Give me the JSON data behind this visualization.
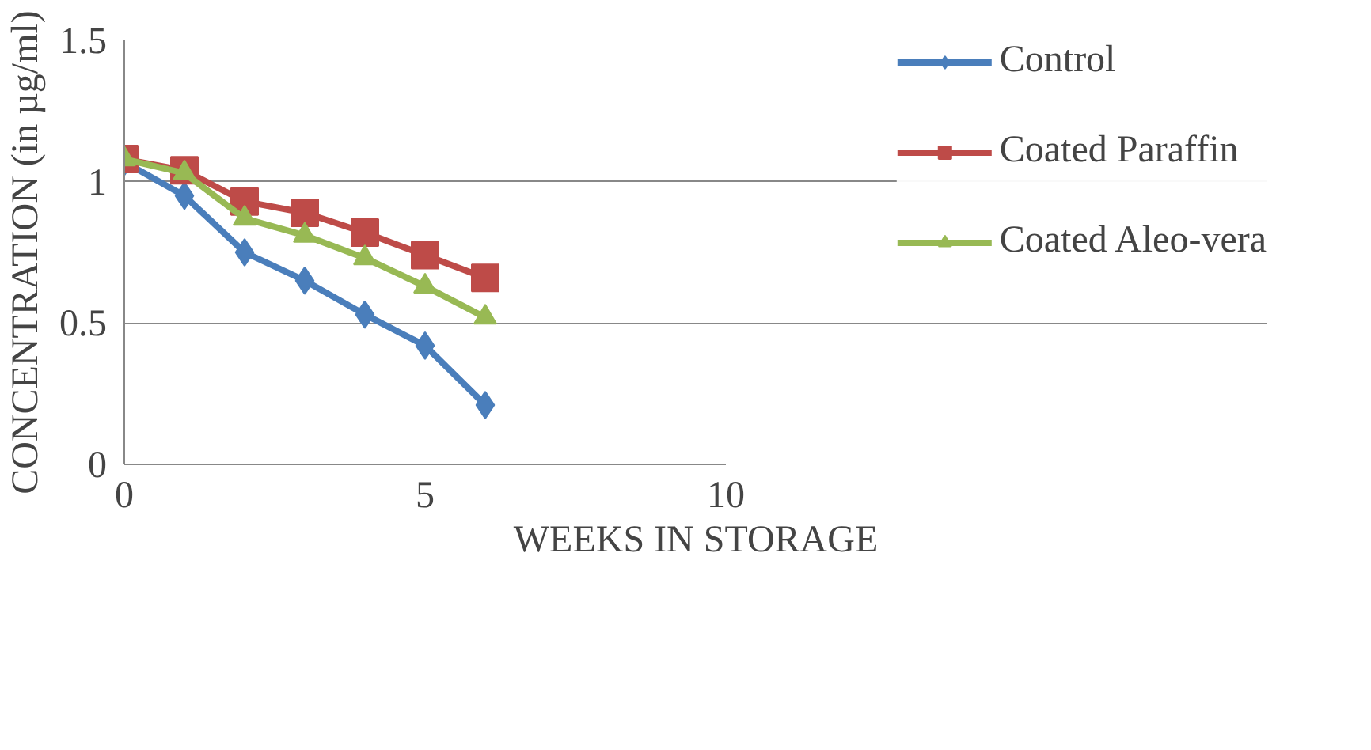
{
  "chart_data": {
    "type": "line",
    "xlabel": "WEEKS IN STORAGE",
    "ylabel": "CONCENTRATION (in µg/ml)",
    "x": [
      0,
      1,
      2,
      3,
      4,
      5,
      6
    ],
    "series": [
      {
        "name": "Control",
        "color": "#4a7ebb",
        "marker": "diamond",
        "values": [
          1.07,
          0.95,
          0.75,
          0.65,
          0.53,
          0.42,
          0.21
        ]
      },
      {
        "name": "Coated Paraffin",
        "color": "#be4b48",
        "marker": "square",
        "values": [
          1.08,
          1.04,
          0.93,
          0.89,
          0.82,
          0.74,
          0.66
        ]
      },
      {
        "name": "Coated Aleo-vera",
        "color": "#98b954",
        "marker": "triangle",
        "values": [
          1.08,
          1.03,
          0.87,
          0.81,
          0.73,
          0.63,
          0.52
        ]
      }
    ],
    "xlim": [
      0,
      10
    ],
    "xticks": [
      0,
      5,
      10
    ],
    "ylim": [
      0,
      1.5
    ],
    "yticks": [
      0,
      0.5,
      1,
      1.5
    ],
    "grid": "y",
    "legend": "right"
  }
}
